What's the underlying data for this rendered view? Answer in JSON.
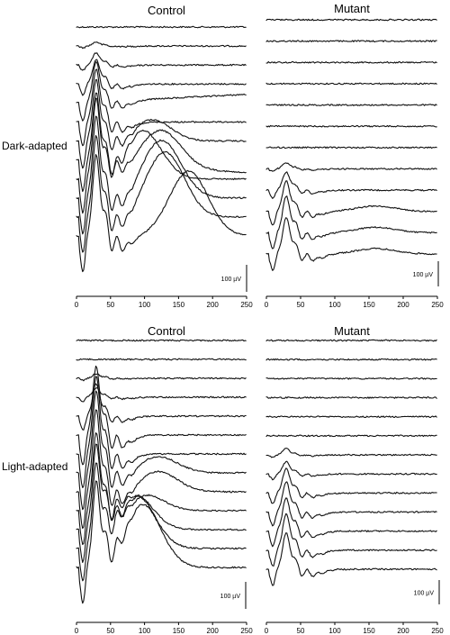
{
  "chart_data": [
    {
      "type": "line",
      "title": "Control",
      "row_label": "Dark-adapted",
      "xlim": [
        0,
        250
      ],
      "x_ticks": [
        "0",
        "50",
        "100",
        "150",
        "200",
        "250"
      ],
      "scale_bar_label": "100 µV",
      "trace_count": 12,
      "component_scale": [
        0.0,
        0.05,
        0.15,
        0.3,
        0.5,
        0.65,
        0.75,
        0.85,
        0.95,
        1.0,
        1.0,
        1.0
      ],
      "late_wave_amplitude": [
        0,
        0,
        0,
        0,
        0,
        0,
        0.3,
        0.5,
        0.7,
        0.8,
        0.9,
        0.9
      ],
      "late_wave_center_ms": [
        0,
        0,
        0,
        0,
        0,
        0,
        110,
        125,
        95,
        125,
        130,
        165
      ]
    },
    {
      "type": "line",
      "title": "Mutant",
      "row_label": "",
      "xlim": [
        0,
        250
      ],
      "x_ticks": [
        "0",
        "50",
        "100",
        "150",
        "200",
        "250"
      ],
      "scale_bar_label": "100 µV",
      "trace_count": 12,
      "component_scale": [
        0.0,
        0.0,
        0.0,
        0.0,
        0.0,
        0.0,
        0.0,
        0.1,
        0.3,
        0.5,
        0.6,
        0.6
      ],
      "late_wave_amplitude": [
        0,
        0,
        0,
        0,
        0,
        0,
        0,
        0,
        0,
        0.1,
        0.1,
        0.1
      ],
      "late_wave_center_ms": [
        0,
        0,
        0,
        0,
        0,
        0,
        0,
        0,
        0,
        160,
        160,
        160
      ]
    },
    {
      "type": "line",
      "title": "Control",
      "row_label": "Light-adapted",
      "xlim": [
        0,
        250
      ],
      "x_ticks": [
        "0",
        "50",
        "100",
        "150",
        "200",
        "250"
      ],
      "scale_bar_label": "100 µV",
      "trace_count": 13,
      "component_scale": [
        0.0,
        0.0,
        0.05,
        0.1,
        0.35,
        0.75,
        0.85,
        0.9,
        0.9,
        0.85,
        0.85,
        0.85,
        0.9
      ],
      "late_wave_amplitude": [
        0,
        0,
        0,
        0,
        0,
        0,
        0,
        0.2,
        0.25,
        0.2,
        0.5,
        0.7,
        0.8
      ],
      "late_wave_center_ms": [
        0,
        0,
        0,
        0,
        0,
        0,
        0,
        120,
        120,
        100,
        80,
        85,
        95
      ]
    },
    {
      "type": "line",
      "title": "Mutant",
      "row_label": "",
      "xlim": [
        0,
        250
      ],
      "x_ticks": [
        "0",
        "50",
        "100",
        "150",
        "200",
        "250"
      ],
      "scale_bar_label": "100 µV",
      "trace_count": 13,
      "component_scale": [
        0.0,
        0.0,
        0.0,
        0.0,
        0.0,
        0.0,
        0.1,
        0.2,
        0.4,
        0.5,
        0.55,
        0.6,
        0.6
      ],
      "late_wave_amplitude": [
        0,
        0,
        0,
        0,
        0,
        0,
        0,
        0,
        0,
        0,
        0,
        0,
        0
      ],
      "late_wave_center_ms": [
        0,
        0,
        0,
        0,
        0,
        0,
        0,
        0,
        0,
        0,
        0,
        0,
        0
      ]
    }
  ]
}
